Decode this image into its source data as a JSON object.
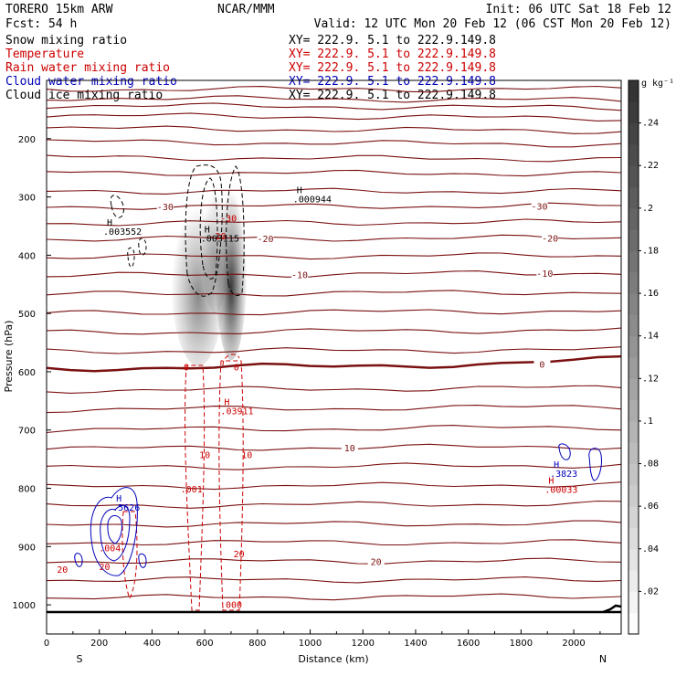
{
  "header": {
    "model": "TORERO  15km ARW",
    "center": "NCAR/MMM",
    "init": "Init: 06 UTC Sat 18 Feb 12",
    "fcst": "Fcst:   54 h",
    "valid": "Valid: 12 UTC Mon 20 Feb 12 (06 CST Mon 20 Feb 12)"
  },
  "fields": [
    {
      "name": "Snow mixing ratio",
      "xy": "XY= 222.9.   5.1 to 222.9.149.8",
      "color": "#000000"
    },
    {
      "name": "Temperature",
      "xy": "XY= 222.9.   5.1 to 222.9.149.8",
      "color": "#cc0000"
    },
    {
      "name": "Rain water mixing ratio",
      "xy": "XY= 222.9.   5.1 to 222.9.149.8",
      "color": "#cc0000"
    },
    {
      "name": "Cloud water mixing ratio",
      "xy": "XY= 222.9.   5.1 to 222.9.149.8",
      "color": "#0000bb"
    },
    {
      "name": "Cloud ice mixing ratio",
      "xy": "XY= 222.9.   5.1 to 222.9.149.8",
      "color": "#000000"
    }
  ],
  "chart_data": {
    "type": "cross-section",
    "xlabel": "Distance (km)",
    "ylabel": "Pressure (hPa)",
    "xlim": [
      0,
      2180
    ],
    "ylim": [
      1050,
      100
    ],
    "xticks": [
      0,
      200,
      400,
      600,
      800,
      1000,
      1200,
      1400,
      1600,
      1800,
      2000
    ],
    "yticks": [
      200,
      300,
      400,
      500,
      600,
      700,
      800,
      900,
      1000
    ],
    "end_labels": {
      "left": "S",
      "right": "N"
    },
    "colorbar": {
      "unit": "g kg⁻¹",
      "ticks": [
        ".02",
        ".04",
        ".06",
        ".08",
        ".1",
        ".12",
        ".14",
        ".16",
        ".18",
        ".2",
        ".22",
        ".24"
      ],
      "min": 0,
      "max": 0.26
    },
    "temperature_isotherms": [
      {
        "p": [
          115,
          115
        ],
        "label": null
      },
      {
        "p": [
          130,
          134
        ],
        "label": null
      },
      {
        "p": [
          143,
          147
        ],
        "label": null
      },
      {
        "p": [
          160,
          165
        ],
        "label": null
      },
      {
        "p": [
          182,
          187
        ],
        "label": null
      },
      {
        "p": [
          205,
          210
        ],
        "label": null
      },
      {
        "p": [
          232,
          235
        ],
        "label": null
      },
      {
        "p": [
          258,
          260
        ],
        "label": null
      },
      {
        "p": [
          290,
          290
        ],
        "label": null
      },
      {
        "p": [
          317,
          315
        ],
        "label": "-30",
        "lx": [
          450,
          1870
        ]
      },
      {
        "p": [
          345,
          343
        ],
        "label": null
      },
      {
        "p": [
          372,
          370
        ],
        "label": "-20",
        "lx": [
          830,
          1910
        ]
      },
      {
        "p": [
          403,
          400
        ],
        "label": null
      },
      {
        "p": [
          435,
          430
        ],
        "label": "-10",
        "lx": [
          960,
          1890
        ]
      },
      {
        "p": [
          467,
          463
        ],
        "label": null
      },
      {
        "p": [
          500,
          495
        ],
        "label": null
      },
      {
        "p": [
          533,
          528
        ],
        "label": null
      },
      {
        "p": [
          565,
          562
        ],
        "label": null
      },
      {
        "p": [
          595,
          585
        ],
        "label": "0",
        "lx": [
          1880
        ],
        "bold": true
      },
      {
        "p": [
          632,
          627
        ],
        "label": null
      },
      {
        "p": [
          665,
          660
        ],
        "label": null
      },
      {
        "p": [
          700,
          695
        ],
        "label": null
      },
      {
        "p": [
          732,
          728
        ],
        "label": "10",
        "lx": [
          1150
        ]
      },
      {
        "p": [
          765,
          760
        ],
        "label": null
      },
      {
        "p": [
          798,
          793
        ],
        "label": null
      },
      {
        "p": [
          830,
          826
        ],
        "label": null
      },
      {
        "p": [
          862,
          860
        ],
        "label": null
      },
      {
        "p": [
          893,
          893
        ],
        "label": null
      },
      {
        "p": [
          925,
          925
        ],
        "label": "20",
        "lx": [
          1250
        ]
      },
      {
        "p": [
          957,
          957
        ],
        "label": null
      },
      {
        "p": [
          988,
          985
        ],
        "label": null
      }
    ],
    "inline_labels": [
      {
        "text": "-30",
        "x": 690,
        "p": 342,
        "color": "#cc0000"
      },
      {
        "text": "-20",
        "x": 650,
        "p": 373,
        "color": "#cc0000"
      },
      {
        "text": "0",
        "x": 530,
        "p": 598,
        "color": "#cc0000"
      },
      {
        "text": "0",
        "x": 720,
        "p": 598,
        "color": "#cc0000"
      },
      {
        "text": "10",
        "x": 600,
        "p": 748,
        "color": "#cc0000"
      },
      {
        "text": "10",
        "x": 760,
        "p": 748,
        "color": "#cc0000"
      },
      {
        "text": "20",
        "x": 730,
        "p": 918,
        "color": "#cc0000"
      },
      {
        "text": "20",
        "x": 60,
        "p": 945,
        "color": "#cc0000"
      },
      {
        "text": "20",
        "x": 220,
        "p": 940,
        "color": "#cc0000"
      },
      {
        "text": ".001",
        "x": 550,
        "p": 807,
        "color": "#cc0000"
      },
      {
        "text": ".004",
        "x": 240,
        "p": 908,
        "color": "#cc0000"
      },
      {
        "text": ".000",
        "x": 700,
        "p": 1005,
        "color": "#cc0000"
      }
    ],
    "maxima": [
      {
        "text": ".003552",
        "x": 215,
        "p": 365,
        "color": "#000000"
      },
      {
        "text": ".003115",
        "x": 585,
        "p": 377,
        "color": "#000000"
      },
      {
        "text": ".000944",
        "x": 935,
        "p": 309,
        "color": "#000000"
      },
      {
        "text": ".03911",
        "x": 660,
        "p": 673,
        "color": "#cc0000"
      },
      {
        "text": ".00033",
        "x": 1890,
        "p": 808,
        "color": "#cc0000"
      },
      {
        "text": ".5626",
        "x": 250,
        "p": 838,
        "color": "#0000bb"
      },
      {
        "text": ".3823",
        "x": 1910,
        "p": 780,
        "color": "#0000bb"
      }
    ],
    "snow_gradient_columns": [
      {
        "x": 575,
        "width": 60,
        "ptop": 280,
        "pbot": 590,
        "peak": 0.14
      },
      {
        "x": 700,
        "width": 35,
        "ptop": 250,
        "pbot": 580,
        "peak": 0.24
      },
      {
        "x": 640,
        "width": 30,
        "ptop": 260,
        "pbot": 500,
        "peak": 0.1
      }
    ]
  }
}
